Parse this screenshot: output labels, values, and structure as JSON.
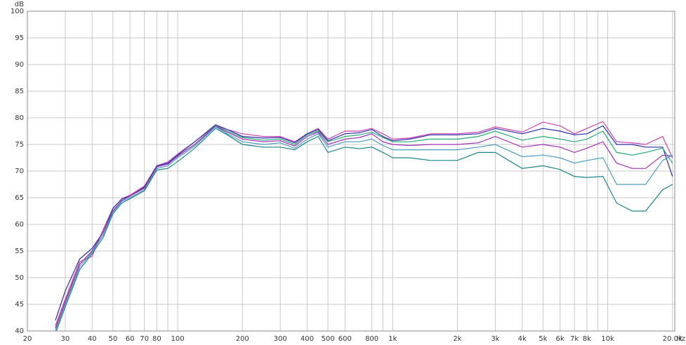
{
  "chart_data": {
    "type": "line",
    "x_unit": "Hz",
    "y_unit": "dB",
    "log_x": true,
    "grid": true,
    "xlim": [
      20,
      20500
    ],
    "ylim": [
      40,
      100
    ],
    "xticks": [
      20,
      30,
      40,
      50,
      60,
      70,
      80,
      100,
      200,
      300,
      400,
      500,
      600,
      800,
      {
        "value": 1000,
        "label": "1k"
      },
      {
        "value": 2000,
        "label": "2k"
      },
      {
        "value": 3000,
        "label": "3k"
      },
      {
        "value": 4000,
        "label": "4k"
      },
      {
        "value": 5000,
        "label": "5k"
      },
      {
        "value": 6000,
        "label": "6k"
      },
      {
        "value": 7000,
        "label": "7k"
      },
      {
        "value": 8000,
        "label": "8k"
      },
      {
        "value": 10000,
        "label": "10k"
      },
      {
        "value": 20000,
        "label": "20.0k"
      }
    ],
    "xminor": [
      90,
      900,
      9000
    ],
    "yticks": [
      40,
      45,
      50,
      55,
      60,
      65,
      70,
      75,
      80,
      85,
      90,
      95,
      100
    ],
    "x": [
      27,
      30,
      35,
      40,
      45,
      50,
      55,
      60,
      70,
      80,
      90,
      100,
      120,
      150,
      170,
      200,
      250,
      300,
      350,
      400,
      450,
      500,
      600,
      700,
      800,
      900,
      1000,
      1200,
      1500,
      2000,
      2500,
      3000,
      4000,
      5000,
      6000,
      7000,
      8000,
      9500,
      11000,
      13000,
      15000,
      18000,
      20000
    ],
    "series": [
      {
        "color": "#cc3fb0",
        "values": [
          41,
          46,
          53,
          54,
          59,
          63,
          64.8,
          65.5,
          67.2,
          71,
          71.7,
          73.2,
          75.5,
          78.5,
          77.8,
          77,
          76.5,
          76.5,
          75.5,
          77,
          78,
          76,
          77.5,
          77.5,
          78,
          77,
          76,
          76.2,
          77,
          77,
          77.3,
          78.3,
          77.3,
          79.2,
          78.5,
          77,
          78,
          79.3,
          75.5,
          75.3,
          75,
          76.5,
          72.5
        ]
      },
      {
        "color": "#2a2aa8",
        "values": [
          42,
          47.5,
          53.5,
          55.5,
          58.5,
          63,
          64.8,
          65.3,
          67,
          71,
          71.5,
          73,
          75.5,
          78.7,
          77.8,
          76.5,
          76.2,
          76.3,
          75.3,
          77,
          77.8,
          75.7,
          77,
          77.2,
          77.8,
          76.5,
          75.7,
          76,
          76.8,
          76.8,
          77,
          78,
          77,
          78,
          77.5,
          76.8,
          77,
          78.5,
          75,
          75,
          74.5,
          74.5,
          69
        ]
      },
      {
        "color": "#22aa77",
        "values": [
          40.5,
          45.5,
          52.5,
          55,
          58.5,
          62.5,
          64.5,
          65.3,
          66.8,
          70.8,
          71.3,
          72.8,
          75,
          78.5,
          77.5,
          76.3,
          75.8,
          76,
          75,
          76.8,
          77.5,
          75.5,
          76.5,
          76.8,
          77.3,
          76.3,
          75.5,
          75.5,
          76,
          76,
          76.5,
          77.5,
          75.8,
          76.5,
          76,
          75.5,
          76,
          77.5,
          73.5,
          73,
          73.5,
          74.3,
          71.5
        ]
      },
      {
        "color": "#a02cb8",
        "values": [
          40.5,
          45.5,
          52.5,
          55,
          58.5,
          62.5,
          64.5,
          65.3,
          66.8,
          70.8,
          71.3,
          72.8,
          75,
          78.4,
          77.3,
          76,
          75.5,
          75.7,
          74.7,
          76.5,
          77.3,
          75,
          76,
          76.3,
          77,
          75.5,
          75,
          74.8,
          75,
          75,
          75.3,
          76.5,
          74.5,
          75,
          74.5,
          73.5,
          74.3,
          75.5,
          71.5,
          70.5,
          70.5,
          73,
          72.8
        ]
      },
      {
        "color": "#4a9cc0",
        "values": [
          40,
          45,
          52,
          54.8,
          58,
          62.3,
          64.3,
          65,
          66.5,
          70.5,
          71,
          72.5,
          74.7,
          78.3,
          77,
          75.5,
          75,
          75.3,
          74.3,
          76,
          77,
          74.5,
          75.5,
          75.5,
          76,
          74.8,
          74,
          74,
          74,
          74,
          74.5,
          75,
          72.7,
          73,
          72.5,
          71.5,
          72,
          72.5,
          67.5,
          67.5,
          67.5,
          72,
          73
        ]
      },
      {
        "color": "#17868a",
        "values": [
          39.5,
          44.5,
          51.5,
          54.5,
          57.5,
          62,
          64,
          64.8,
          66.3,
          70.2,
          70.5,
          71.8,
          74.3,
          78,
          76.8,
          75,
          74.5,
          74.5,
          74,
          75.5,
          76.5,
          73.5,
          74.5,
          74.2,
          74.5,
          73.5,
          72.5,
          72.5,
          72,
          72,
          73.5,
          73.5,
          70.5,
          71,
          70.3,
          69,
          68.8,
          69,
          64,
          62.5,
          62.5,
          66.5,
          67.5
        ]
      }
    ]
  }
}
